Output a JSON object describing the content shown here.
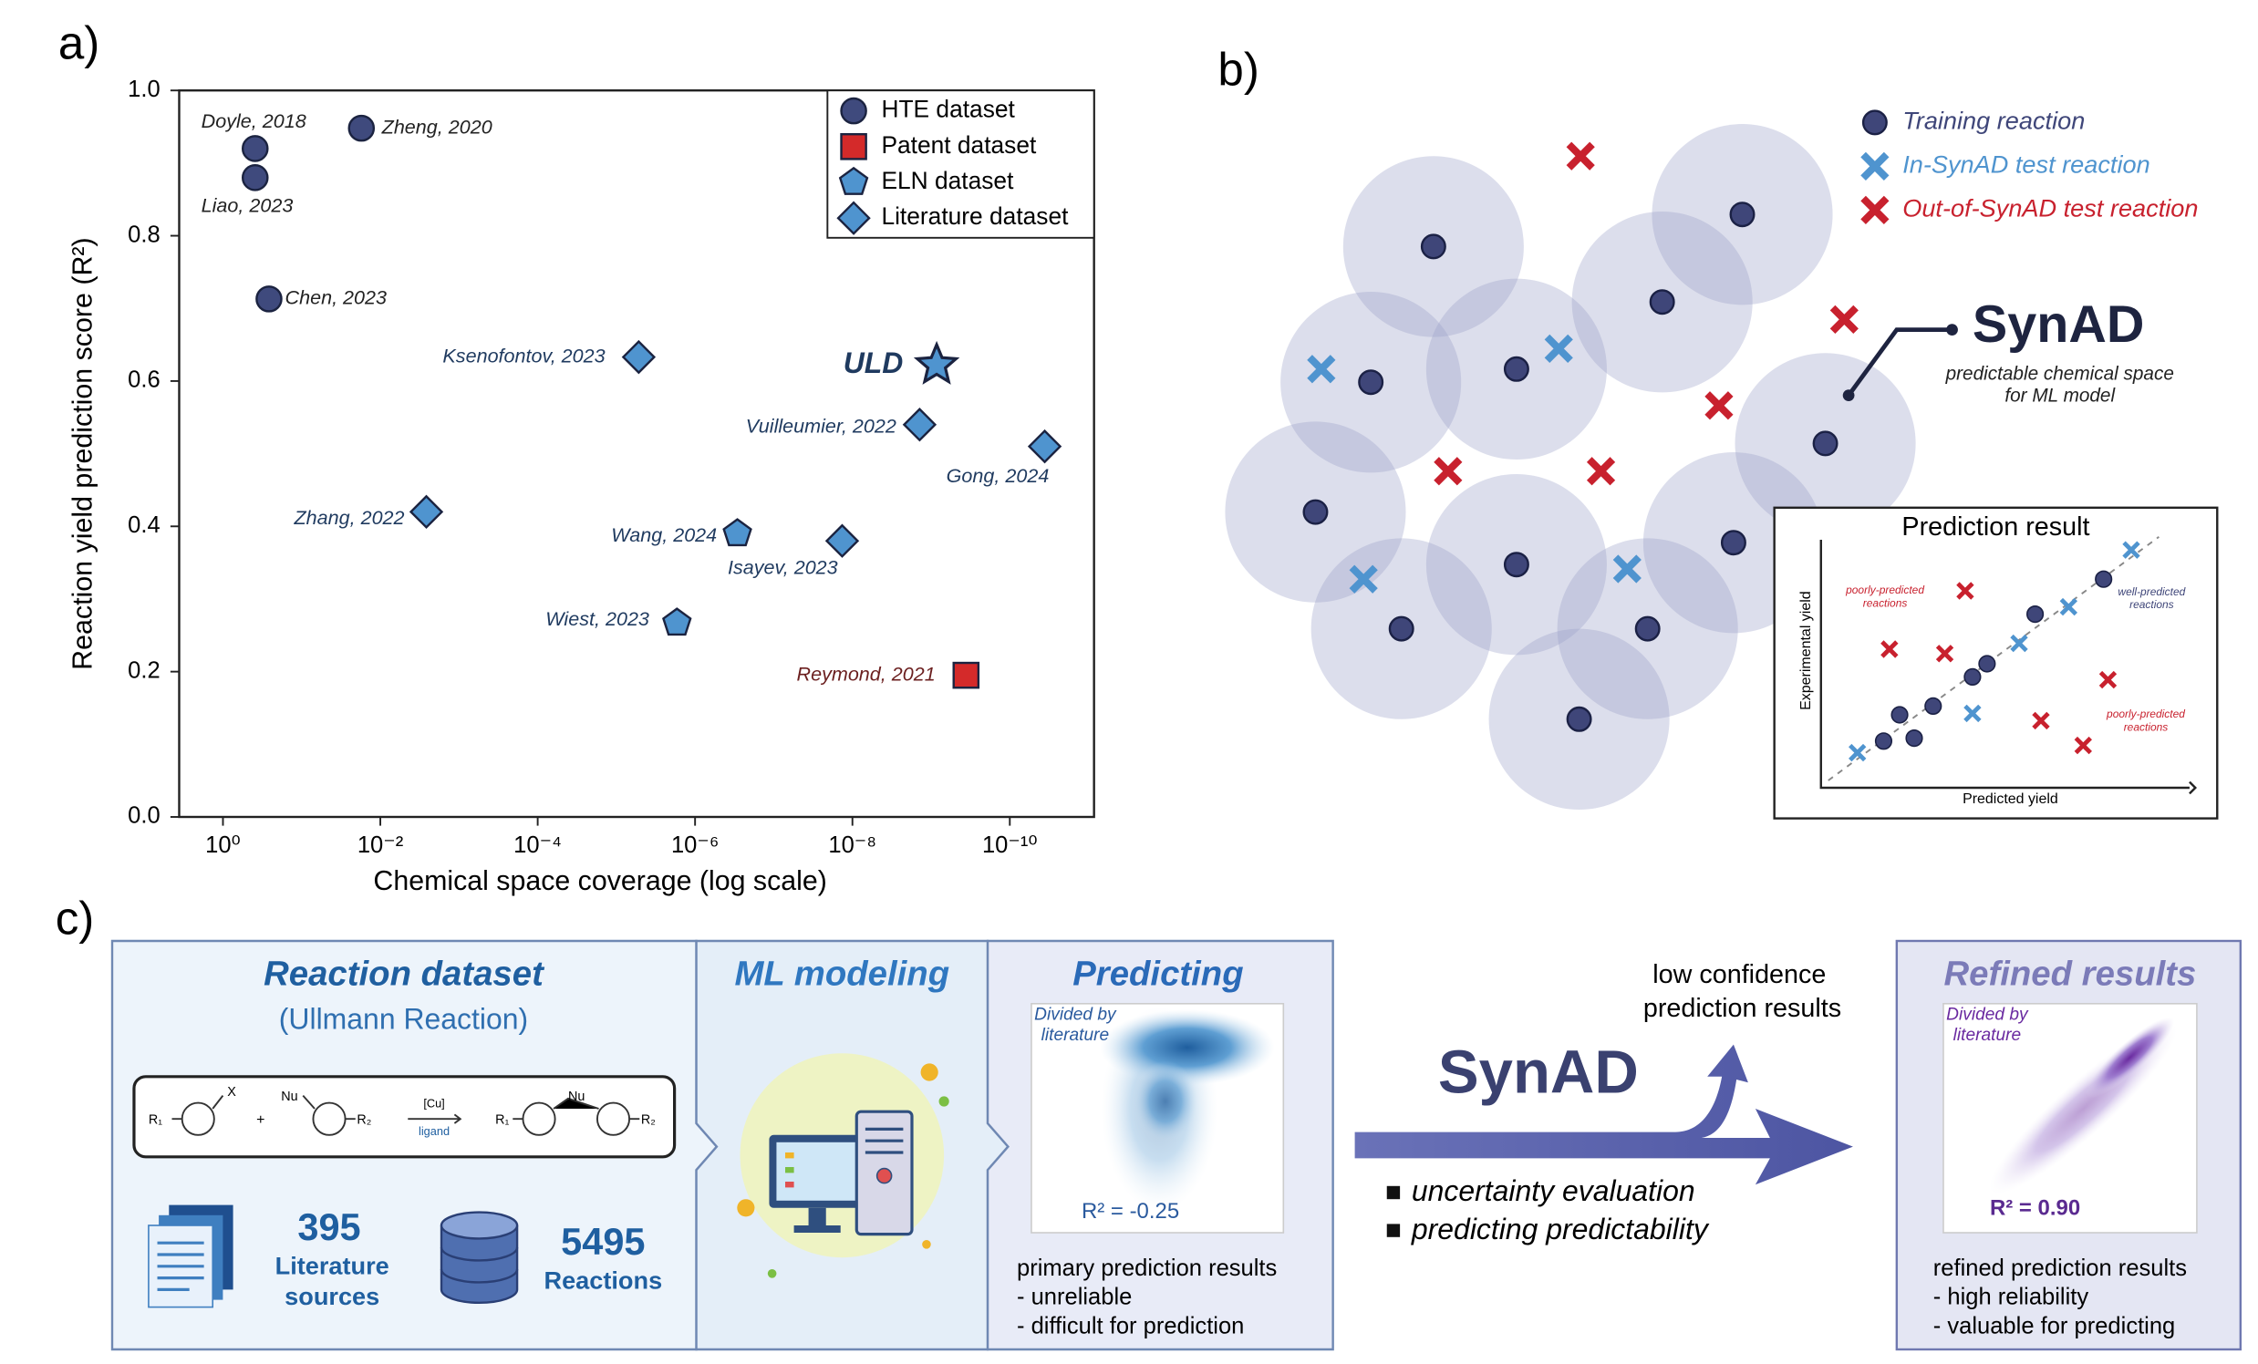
{
  "chart_data": {
    "type": "scatter",
    "panel_label": "a)",
    "xlabel": "Chemical space coverage (log scale)",
    "ylabel": "Reaction yield prediction score (R²)",
    "xlog": true,
    "xlim": [
      3.6,
      8.5e-12
    ],
    "xticks": [
      {
        "value": 1,
        "label": "10⁰"
      },
      {
        "value": 0.01,
        "label": "10⁻²"
      },
      {
        "value": 0.0001,
        "label": "10⁻⁴"
      },
      {
        "value": 1e-06,
        "label": "10⁻⁶"
      },
      {
        "value": 1e-08,
        "label": "10⁻⁸"
      },
      {
        "value": 1e-10,
        "label": "10⁻¹⁰"
      }
    ],
    "ylim": [
      0,
      1
    ],
    "yticks": [
      {
        "value": 0,
        "label": "0.0"
      },
      0.2,
      0.4,
      0.6,
      0.8,
      {
        "value": 1,
        "label": "1.0"
      }
    ],
    "legend": "upper right",
    "series": [
      {
        "name": "HTE dataset",
        "marker": "circle",
        "color": "#3f4a7d",
        "label_color": "#222222",
        "labels": [
          "Doyle, 2018",
          "Liao, 2023",
          "Zheng, 2020",
          "Chen, 2023"
        ],
        "x": [
          0.39,
          0.39,
          0.0174,
          0.26
        ],
        "values": [
          0.92,
          0.88,
          0.948,
          0.713
        ]
      },
      {
        "name": "Patent dataset",
        "marker": "square",
        "color": "#d42a2a",
        "label_color": "#6b1f1f",
        "labels": [
          "Reymond, 2021"
        ],
        "x": [
          3.6e-10
        ],
        "values": [
          0.195
        ]
      },
      {
        "name": "ELN dataset",
        "marker": "pentagon",
        "color": "#4f94cf",
        "label_color": "#1f3a5f",
        "labels": [
          "Wang, 2024",
          "Wiest, 2023"
        ],
        "x": [
          2.9e-07,
          1.7e-06
        ],
        "values": [
          0.39,
          0.267
        ]
      },
      {
        "name": "Literature dataset",
        "marker": "diamond",
        "color": "#4f94cf",
        "label_color": "#1f3a5f",
        "labels": [
          "Ksenofontov, 2023",
          "Vuilleumier, 2022",
          "Gong, 2024",
          "Zhang, 2022",
          "Isayev, 2023"
        ],
        "x": [
          5.2e-06,
          1.4e-09,
          3.6e-11,
          0.0026,
          1.35e-08
        ],
        "values": [
          0.633,
          0.54,
          0.51,
          0.42,
          0.38
        ]
      }
    ],
    "highlight": {
      "label": "ULD",
      "x": 8.5e-10,
      "value": 0.622,
      "color": "#4f94cf"
    }
  },
  "panel_b": {
    "label": "b)",
    "legend": [
      "Training reaction",
      "In-SynAD test reaction",
      "Out-of-SynAD test reaction"
    ],
    "title": "SynAD",
    "subtitle": [
      "predictable chemical space",
      "for ML model"
    ],
    "inset": {
      "title": "Prediction result",
      "xlabel": "Predicted yield",
      "ylabel": "Experimental yield",
      "note_left": [
        "poorly-predicted",
        "reactions"
      ],
      "note_right": [
        "well-predicted",
        "reactions"
      ],
      "note_bottom": [
        "poorly-predicted",
        "reactions"
      ]
    }
  },
  "panel_c": {
    "label": "c)",
    "dataset": {
      "title": "Reaction dataset",
      "subtitle": "(Ullmann Reaction)",
      "substituents": [
        "X",
        "Nu",
        "R₁",
        "R₂"
      ],
      "reagent": "[Cu]",
      "condition": "ligand",
      "literature_count": 395,
      "literature_label": [
        "Literature",
        "sources"
      ],
      "reaction_count": 5495,
      "reaction_label": "Reactions"
    },
    "modeling": {
      "title": "ML modeling"
    },
    "predicting": {
      "title": "Predicting",
      "plot_note": [
        "Divided by",
        "literature"
      ],
      "r2": "R² = -0.25",
      "caption": [
        "primary prediction results",
        "- unreliable",
        "- difficult for prediction"
      ]
    },
    "synad": {
      "title": "SynAD",
      "branch": [
        "low confidence",
        "prediction results"
      ],
      "bullets": [
        "uncertainty evaluation",
        "predicting predictability"
      ]
    },
    "refined": {
      "title": "Refined results",
      "plot_note": [
        "Divided by",
        "literature"
      ],
      "r2": "R² = 0.90",
      "caption": [
        "refined prediction results",
        "- high reliability",
        "- valuable for predicting"
      ]
    }
  }
}
